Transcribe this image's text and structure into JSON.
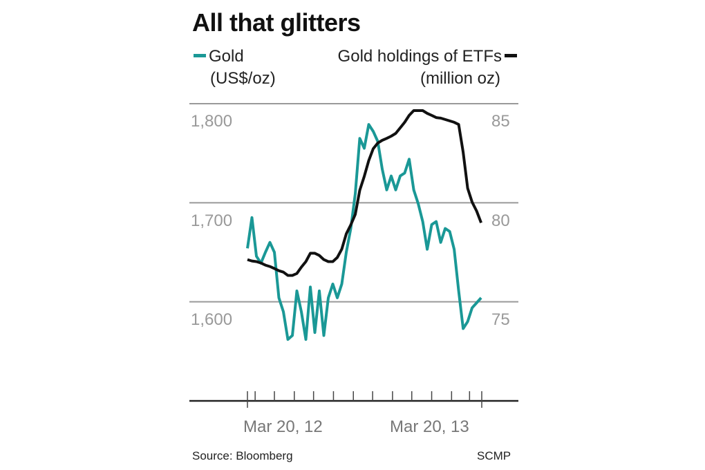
{
  "chart_data": {
    "type": "line",
    "title": "All that glitters",
    "source": "Source: Bloomberg",
    "credit": "SCMP",
    "x_tick_labels": [
      "Mar 20, 12",
      "Mar 20, 13"
    ],
    "x_range": [
      "2012-03-20",
      "2013-03-20"
    ],
    "grid": "horizontal",
    "y_left": {
      "label_line1": "Gold",
      "label_line2": "(US$/oz)",
      "ticks": [
        "1,600",
        "1,700",
        "1,800"
      ],
      "range": [
        1500,
        1800
      ]
    },
    "y_right": {
      "label_line1": "Gold holdings of ETFs",
      "label_line2": "(million oz)",
      "ticks": [
        "75",
        "80",
        "85"
      ],
      "range": [
        70,
        85
      ]
    },
    "dates": [
      "2012-03-20",
      "2012-03-27",
      "2012-04-03",
      "2012-04-10",
      "2012-04-17",
      "2012-04-24",
      "2012-05-01",
      "2012-05-08",
      "2012-05-15",
      "2012-05-22",
      "2012-05-29",
      "2012-06-05",
      "2012-06-12",
      "2012-06-19",
      "2012-06-26",
      "2012-07-03",
      "2012-07-10",
      "2012-07-17",
      "2012-07-24",
      "2012-07-31",
      "2012-08-07",
      "2012-08-14",
      "2012-08-21",
      "2012-08-28",
      "2012-09-04",
      "2012-09-11",
      "2012-09-18",
      "2012-09-25",
      "2012-10-02",
      "2012-10-09",
      "2012-10-16",
      "2012-10-23",
      "2012-10-30",
      "2012-11-06",
      "2012-11-13",
      "2012-11-20",
      "2012-11-27",
      "2012-12-04",
      "2012-12-11",
      "2012-12-18",
      "2012-12-25",
      "2013-01-01",
      "2013-01-08",
      "2013-01-15",
      "2013-01-22",
      "2013-01-29",
      "2013-02-05",
      "2013-02-12",
      "2013-02-19",
      "2013-02-26",
      "2013-03-05",
      "2013-03-12",
      "2013-03-19"
    ],
    "series": [
      {
        "name": "Gold (US$/oz)",
        "axis": "left",
        "color": "#1a9896",
        "values": [
          1654,
          1685,
          1646,
          1639,
          1650,
          1660,
          1650,
          1604,
          1590,
          1562,
          1566,
          1611,
          1590,
          1562,
          1615,
          1569,
          1611,
          1566,
          1604,
          1618,
          1604,
          1618,
          1650,
          1674,
          1709,
          1765,
          1755,
          1779,
          1772,
          1762,
          1734,
          1713,
          1727,
          1713,
          1727,
          1730,
          1744,
          1713,
          1699,
          1681,
          1653,
          1678,
          1681,
          1660,
          1674,
          1671,
          1653,
          1611,
          1573,
          1580,
          1594,
          1599,
          1604
        ]
      },
      {
        "name": "Gold holdings of ETFs (million oz)",
        "axis": "right",
        "color": "#111111",
        "values": [
          77.13,
          77.06,
          77.03,
          76.96,
          76.85,
          76.78,
          76.68,
          76.57,
          76.5,
          76.33,
          76.33,
          76.43,
          76.75,
          77.03,
          77.45,
          77.45,
          77.34,
          77.13,
          77.03,
          77.03,
          77.24,
          77.66,
          78.43,
          78.88,
          79.41,
          80.63,
          81.33,
          82.13,
          82.73,
          83.01,
          83.15,
          83.25,
          83.36,
          83.5,
          83.78,
          84.06,
          84.41,
          84.65,
          84.65,
          84.65,
          84.51,
          84.41,
          84.3,
          84.27,
          84.2,
          84.13,
          84.06,
          83.95,
          82.55,
          80.73,
          80.03,
          79.58,
          78.99
        ]
      }
    ]
  }
}
